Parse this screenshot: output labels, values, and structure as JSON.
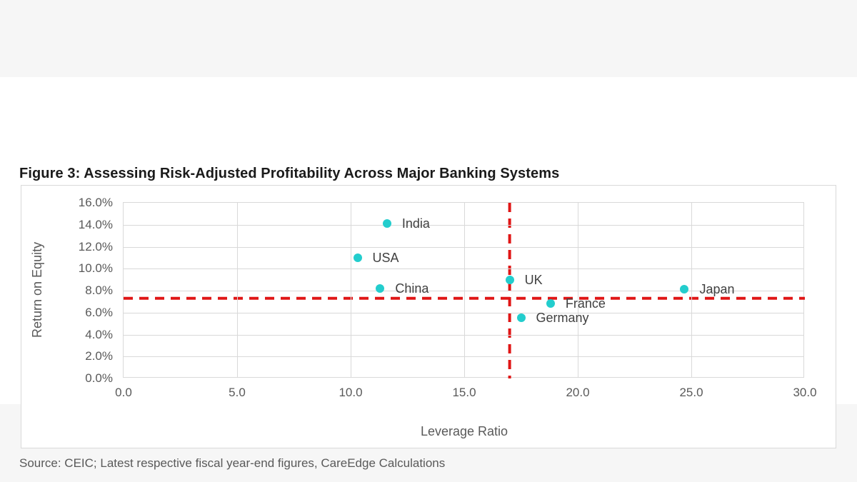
{
  "page": {
    "background_color": "#f6f6f6",
    "panel_color": "#ffffff",
    "title": "Figure 3: Assessing Risk-Adjusted Profitability Across Major Banking Systems",
    "source_note": "Source: CEIC; Latest respective fiscal year-end figures, CareEdge Calculations"
  },
  "chart_data": {
    "type": "scatter",
    "title": "",
    "xlabel": "Leverage Ratio",
    "ylabel": "Return on Equity",
    "xlim": [
      0,
      30
    ],
    "ylim": [
      0,
      16
    ],
    "x_ticks": [
      "0.0",
      "5.0",
      "10.0",
      "15.0",
      "20.0",
      "25.0",
      "30.0"
    ],
    "y_ticks": [
      "0.0%",
      "2.0%",
      "4.0%",
      "6.0%",
      "8.0%",
      "10.0%",
      "12.0%",
      "14.0%",
      "16.0%"
    ],
    "grid": true,
    "legend": false,
    "points": [
      {
        "label": "India",
        "x": 11.6,
        "y": 14.1
      },
      {
        "label": "USA",
        "x": 10.3,
        "y": 11.0
      },
      {
        "label": "China",
        "x": 11.3,
        "y": 8.2
      },
      {
        "label": "UK",
        "x": 17.0,
        "y": 9.0
      },
      {
        "label": "France",
        "x": 18.8,
        "y": 6.8
      },
      {
        "label": "Germany",
        "x": 17.5,
        "y": 5.5
      },
      {
        "label": "Japan",
        "x": 24.7,
        "y": 8.1
      }
    ],
    "ref_lines": {
      "vertical_x": 17.0,
      "horizontal_y": 7.3
    },
    "colors": {
      "point": "#23cdcd",
      "reference_line": "#e01616",
      "grid": "#d9d9d9",
      "tick_text": "#595959",
      "axis_title_text": "#595959",
      "point_label_text": "#404040",
      "title_text": "#1a1a1a"
    }
  }
}
